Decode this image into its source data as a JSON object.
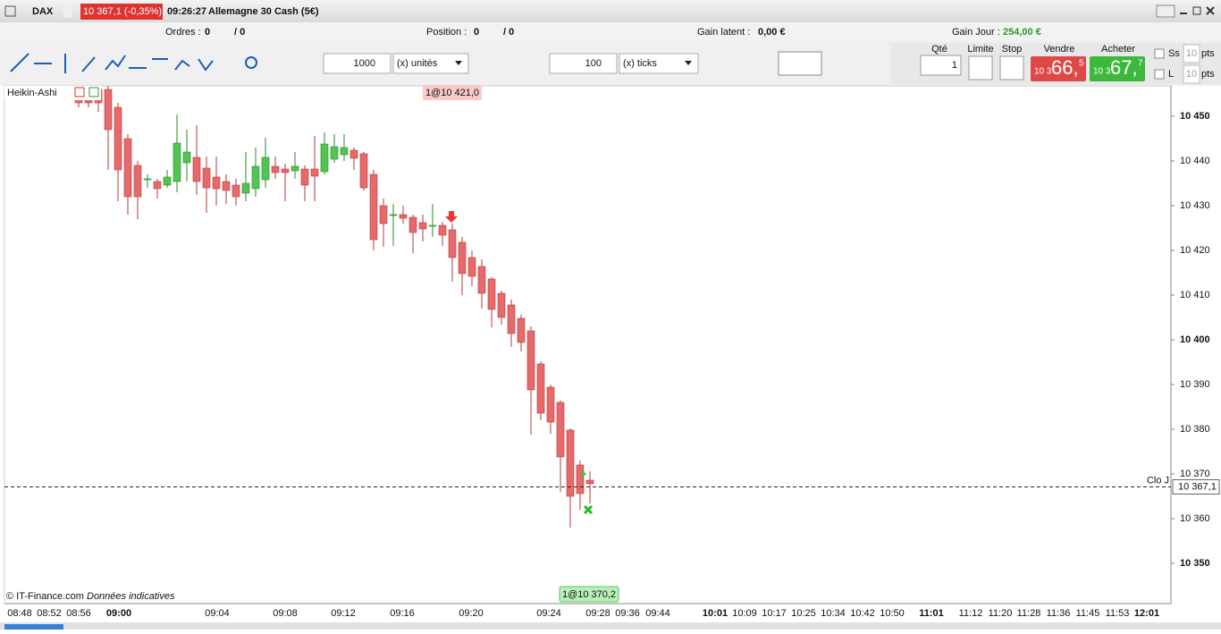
{
  "header": {
    "symbol": "DAX",
    "quote": "10 367,1 (-0,35%)",
    "time": "09:26:27",
    "instrument": "Allemagne 30 Cash (5€)"
  },
  "status": {
    "orders_label": "Ordres :",
    "orders": "0",
    "orders_total": "/ 0",
    "position_label": "Position :",
    "position": "0",
    "position_total": "/ 0",
    "latent_label": "Gain latent :",
    "latent": "0,00 €",
    "day_label": "Gain Jour :",
    "day": "254,00 €"
  },
  "toolbar": {
    "qty1": "1000",
    "unit1": "(x) unités",
    "qty2": "100",
    "unit2": "(x) ticks"
  },
  "order_panel": {
    "qty_label": "Qté",
    "qty": "1",
    "limit": "Limite",
    "stop": "Stop",
    "sell": "Vendre",
    "buy": "Acheter",
    "sell_prefix": "10 3",
    "sell_main": "66,",
    "sell_sup": "5",
    "buy_prefix": "10 3",
    "buy_main": "67,",
    "buy_sup": "7",
    "ss": "Ss",
    "ss_value": "10",
    "ss_unit": "pts",
    "l": "L",
    "l_value": "10",
    "l_unit": "pts"
  },
  "chart_data": {
    "type": "candlestick",
    "title": "Heikin-Ashi",
    "open": [
      10456,
      10456,
      10456,
      10456,
      10452,
      10445,
      10439,
      10436,
      10435.4,
      10434.6,
      10435.4,
      10439.6,
      10440.8,
      10438.4,
      10436.4,
      10435.4,
      10434.6,
      10432.8,
      10433.8,
      10435.8,
      10438.8,
      10438.2,
      10437.8,
      10438.2,
      10438.2,
      10437.6,
      10440.4,
      10441.4,
      10442.4,
      10441.6,
      10437,
      10430,
      10428,
      10428,
      10427.4,
      10426.2,
      10425.6,
      10425.6,
      10424.6,
      10421.8,
      10418.4,
      10416.4,
      10413.6,
      10410.4,
      10407.8,
      10404.8,
      10402,
      10394.6,
      10389.4,
      10386,
      10379.8,
      10372,
      10368.6
    ],
    "high": [
      10457,
      10457,
      10457,
      10457,
      10453,
      10446,
      10440,
      10437,
      10436,
      10438,
      10450.4,
      10447,
      10448,
      10441,
      10441,
      10437,
      10436,
      10442,
      10443,
      10445.2,
      10441,
      10439.4,
      10442,
      10439,
      10445.6,
      10446.4,
      10446,
      10446,
      10443,
      10442,
      10438,
      10431.6,
      10430.4,
      10430,
      10428,
      10428,
      10430.4,
      10426.4,
      10426,
      10423,
      10420,
      10418,
      10414,
      10411,
      10409,
      10405.6,
      10403,
      10395.2,
      10390,
      10386.4,
      10380.2,
      10373,
      10370.6
    ],
    "low": [
      10452,
      10452,
      10451,
      10438,
      10431,
      10428,
      10427,
      10434,
      10431.6,
      10434,
      10433,
      10435.4,
      10432.4,
      10428.4,
      10430,
      10430.4,
      10430,
      10431,
      10432,
      10434,
      10436,
      10431,
      10436,
      10431,
      10431,
      10437,
      10439.6,
      10440,
      10438,
      10433.4,
      10420,
      10420.8,
      10421,
      10426,
      10419.4,
      10422,
      10423,
      10421,
      10413,
      10410,
      10412,
      10407,
      10402.8,
      10403.4,
      10398.4,
      10397.4,
      10378.8,
      10382,
      10379,
      10366,
      10358,
      10362,
      10363.4
    ],
    "close": [
      10453,
      10453,
      10453,
      10447,
      10438,
      10432,
      10432,
      10436,
      10433.8,
      10436.4,
      10444,
      10442,
      10435.4,
      10434,
      10433.8,
      10433.4,
      10432,
      10435,
      10438.8,
      10440.8,
      10437.4,
      10437.4,
      10438.8,
      10434.6,
      10436.6,
      10443.8,
      10443.2,
      10443,
      10440.6,
      10434,
      10422.4,
      10426,
      10428,
      10427.2,
      10424,
      10424.8,
      10425.6,
      10423.4,
      10418.4,
      10414.8,
      10414.2,
      10410.4,
      10406.8,
      10405,
      10401.4,
      10399.4,
      10388.8,
      10383.6,
      10381.6,
      10373.8,
      10365,
      10365.6,
      10367.8
    ],
    "up_color": "#52c452",
    "down_color": "#e66a6c",
    "ylim": [
      10341,
      10456.8
    ],
    "yticks": [
      {
        "value": 10450,
        "label": "10 450"
      },
      {
        "value": 10440,
        "label": "10 440"
      },
      {
        "value": 10430,
        "label": "10 430"
      },
      {
        "value": 10420,
        "label": "10 420"
      },
      {
        "value": 10410,
        "label": "10 410"
      },
      {
        "value": 10400,
        "label": "10 400"
      },
      {
        "value": 10390,
        "label": "10 390"
      },
      {
        "value": 10380,
        "label": "10 380"
      },
      {
        "value": 10370,
        "label": "10 370"
      },
      {
        "value": 10360,
        "label": "10 360"
      },
      {
        "value": 10350,
        "label": "10 350"
      }
    ],
    "x_labels": [
      "08:48",
      "08:52",
      "08:56",
      "09:00",
      "09:04",
      "09:08",
      "09:12",
      "09:16",
      "09:20",
      "09:24",
      "09:28",
      "09:36",
      "09:44",
      "10:01",
      "10:09",
      "10:17",
      "10:25",
      "10:34",
      "10:42",
      "10:50",
      "11:01",
      "11:12",
      "11:20",
      "11:28",
      "11:36",
      "11:45",
      "11:53",
      "12:01"
    ],
    "last": {
      "value": 10367.1,
      "label": "10 367,1"
    },
    "last_label": "Clo J",
    "annotations": [
      "1@10 421,0",
      "1@10 370,2"
    ],
    "source": "© IT-Finance.com",
    "note": "Données indicatives"
  }
}
